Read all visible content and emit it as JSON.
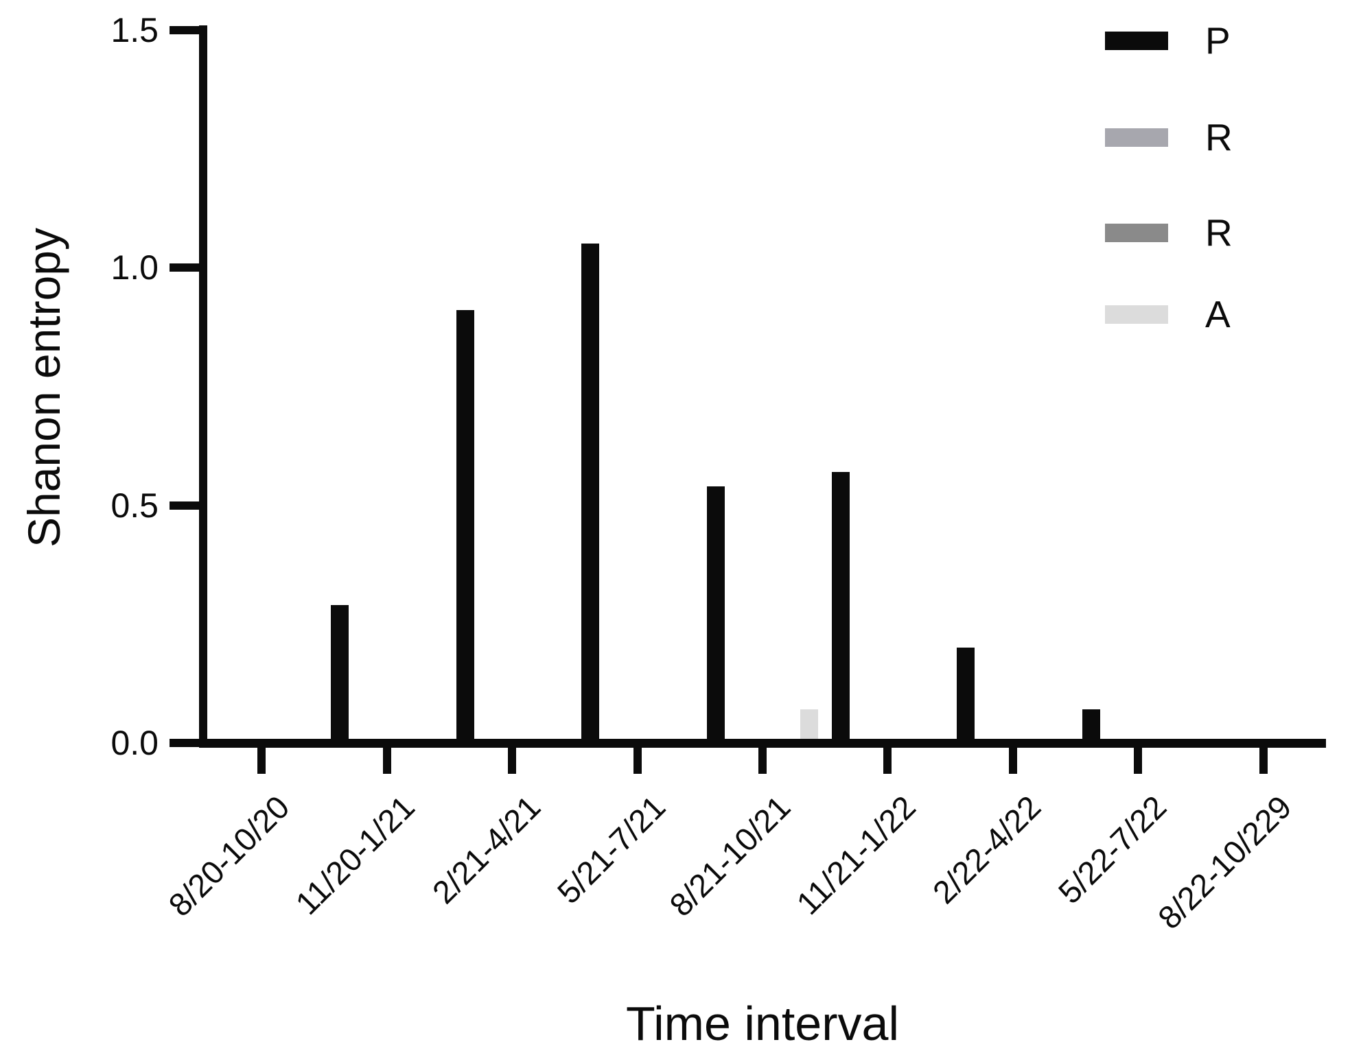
{
  "figure": {
    "background": "#ffffff",
    "axis_color": "#0b0b0b"
  },
  "chart_data": {
    "type": "bar",
    "title": "",
    "xlabel": "Time interval",
    "ylabel": "Shanon entropy",
    "categories": [
      "8/20-10/20",
      "11/20-1/21",
      "2/21-4/21",
      "5/21-7/21",
      "8/21-10/21",
      "11/21-1/22",
      "2/22-4/22",
      "5/22-7/22",
      "8/22-10/229"
    ],
    "series": [
      {
        "name": "P",
        "color": "#0b0b0b",
        "values": [
          0,
          0.29,
          0.91,
          1.05,
          0.54,
          0.57,
          0.2,
          0.07,
          0
        ]
      },
      {
        "name": "R",
        "color": "#a7a7ae",
        "values": [
          0,
          0,
          0,
          0,
          0,
          0,
          0,
          0,
          0
        ]
      },
      {
        "name": "R",
        "color": "#8a8a8a",
        "values": [
          0,
          0,
          0,
          0,
          0,
          0,
          0,
          0,
          0
        ]
      },
      {
        "name": "A",
        "color": "#dcdcdc",
        "values": [
          0,
          0,
          0,
          0,
          0.07,
          0,
          0,
          0,
          0
        ]
      }
    ],
    "y_ticks": [
      1.5,
      1.0,
      0.5,
      0.0
    ],
    "y_tick_labels": [
      "1.5",
      "1.0",
      "0.5",
      "0.0"
    ],
    "ylim": [
      0,
      1.5
    ],
    "grid": false,
    "legend_position": "top-right",
    "bar_group_layout": "grouped-4-slots",
    "x_tick_label_rotation_deg": -45
  }
}
